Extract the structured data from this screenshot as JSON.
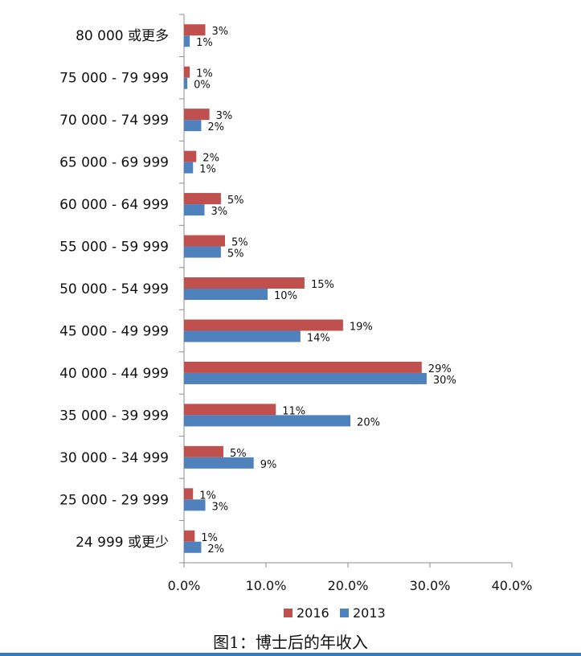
{
  "caption": "图1：博士后的年收入",
  "colors": {
    "s2016": "#c0504d",
    "s2013": "#4f81bd",
    "axis": "#8c8c8c"
  },
  "chart_data": {
    "type": "bar",
    "orientation": "horizontal",
    "title": "",
    "xlabel": "",
    "ylabel": "",
    "xlim": [
      0,
      40
    ],
    "xticks": [
      "0.0%",
      "10.0%",
      "20.0%",
      "30.0%",
      "40.0%"
    ],
    "legend_position": "bottom",
    "categories": [
      "80 000  或更多",
      "75 000 -  79 999",
      "70 000 -  74 999",
      "65 000 -  69 999",
      "60 000 -  64 999",
      "55 000 -  59 999",
      "50 000 -  54 999",
      "45 000 -  49 999",
      "40 000 -  44 999",
      "35 000 -  39 999",
      "30 000 -  34 999",
      "25 000 -  29 999",
      "24 999 或更少"
    ],
    "series": [
      {
        "name": "2016",
        "color": "#c0504d",
        "values": [
          2.6,
          0.7,
          3.1,
          1.5,
          4.5,
          5.0,
          14.7,
          19.4,
          29.0,
          11.2,
          4.8,
          1.1,
          1.3
        ],
        "labels": [
          "3%",
          "1%",
          "3%",
          "2%",
          "5%",
          "5%",
          "15%",
          "19%",
          "29%",
          "11%",
          "5%",
          "1%",
          "1%"
        ]
      },
      {
        "name": "2013",
        "color": "#4f81bd",
        "values": [
          0.7,
          0.4,
          2.1,
          1.1,
          2.5,
          4.5,
          10.2,
          14.2,
          29.6,
          20.3,
          8.5,
          2.6,
          2.1
        ],
        "labels": [
          "1%",
          "0%",
          "2%",
          "1%",
          "3%",
          "5%",
          "10%",
          "14%",
          "30%",
          "20%",
          "9%",
          "3%",
          "2%"
        ]
      }
    ]
  }
}
